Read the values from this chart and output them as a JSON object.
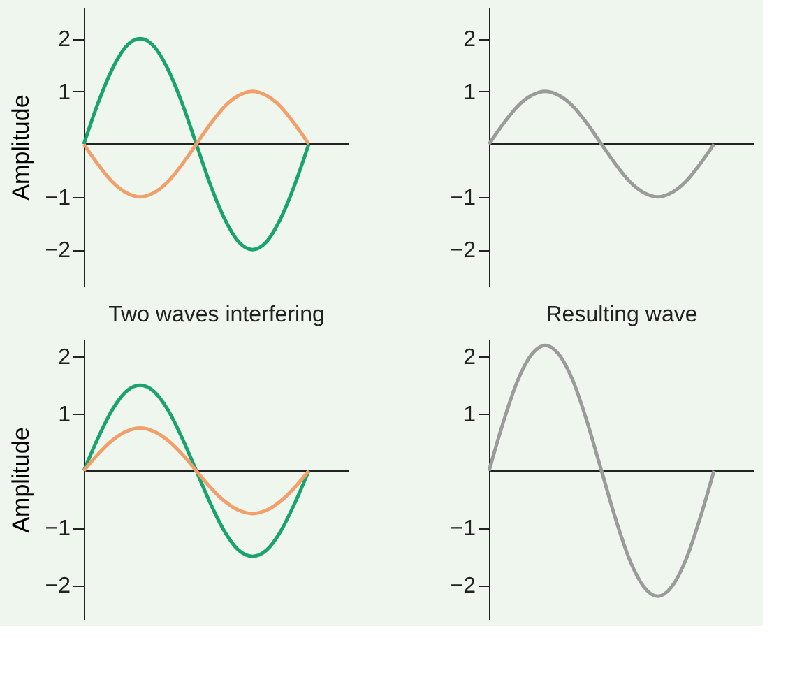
{
  "chart_data": [
    {
      "type": "line",
      "ylabel": "Amplitude",
      "annotations": [
        "Two waves interfering"
      ],
      "categories": [
        null,
        null,
        null,
        null,
        null,
        null,
        null,
        null,
        null,
        null,
        null,
        null,
        null,
        null,
        null,
        null,
        null
      ],
      "ylim": [
        -2.7,
        2.6
      ],
      "yticks": [
        -2,
        -1,
        1,
        2
      ],
      "tick_labels": "y",
      "grid": false,
      "series": [
        {
          "color": "#1aa36f",
          "values": [
            0,
            0.77,
            1.41,
            1.85,
            2,
            1.85,
            1.41,
            0.77,
            0,
            -0.77,
            -1.41,
            -1.85,
            -2,
            -1.85,
            -1.41,
            -0.77,
            0
          ]
        },
        {
          "color": "#f2a06b",
          "values": [
            0,
            -0.38,
            -0.71,
            -0.92,
            -1,
            -0.92,
            -0.71,
            -0.38,
            0,
            0.38,
            0.71,
            0.92,
            1,
            0.92,
            0.71,
            0.38,
            0
          ]
        }
      ]
    },
    {
      "type": "line",
      "annotations": [
        "Resulting wave"
      ],
      "categories": [
        null,
        null,
        null,
        null,
        null,
        null,
        null,
        null,
        null,
        null,
        null,
        null,
        null,
        null,
        null,
        null,
        null
      ],
      "ylim": [
        -2.7,
        2.6
      ],
      "yticks": [
        -2,
        -1,
        1,
        2
      ],
      "tick_labels": "y",
      "grid": false,
      "series": [
        {
          "color": "#9b9b9b",
          "values": [
            0,
            0.38,
            0.71,
            0.92,
            1,
            0.92,
            0.71,
            0.38,
            0,
            -0.38,
            -0.71,
            -0.92,
            -1,
            -0.92,
            -0.71,
            -0.38,
            0
          ]
        }
      ]
    },
    {
      "type": "line",
      "ylabel": "Amplitude",
      "categories": [
        null,
        null,
        null,
        null,
        null,
        null,
        null,
        null,
        null,
        null,
        null,
        null,
        null,
        null,
        null,
        null,
        null
      ],
      "ylim": [
        -2.6,
        2.3
      ],
      "yticks": [
        -2,
        -1,
        1,
        2
      ],
      "tick_labels": "y",
      "grid": false,
      "series": [
        {
          "color": "#1aa36f",
          "values": [
            0,
            0.57,
            1.06,
            1.39,
            1.5,
            1.39,
            1.06,
            0.57,
            0,
            -0.57,
            -1.06,
            -1.39,
            -1.5,
            -1.39,
            -1.06,
            -0.57,
            0
          ]
        },
        {
          "color": "#f2a06b",
          "values": [
            0,
            0.29,
            0.53,
            0.69,
            0.75,
            0.69,
            0.53,
            0.29,
            0,
            -0.29,
            -0.53,
            -0.69,
            -0.75,
            -0.69,
            -0.53,
            -0.29,
            0
          ]
        }
      ]
    },
    {
      "type": "line",
      "categories": [
        null,
        null,
        null,
        null,
        null,
        null,
        null,
        null,
        null,
        null,
        null,
        null,
        null,
        null,
        null,
        null,
        null
      ],
      "ylim": [
        -2.6,
        2.3
      ],
      "yticks": [
        -2,
        -1,
        1,
        2
      ],
      "tick_labels": "y",
      "grid": false,
      "series": [
        {
          "color": "#9b9b9b",
          "values": [
            0,
            0.84,
            1.56,
            2.03,
            2.2,
            2.03,
            1.56,
            0.84,
            0,
            -0.84,
            -1.56,
            -2.03,
            -2.2,
            -2.03,
            -1.56,
            -0.84,
            0
          ]
        }
      ]
    }
  ]
}
